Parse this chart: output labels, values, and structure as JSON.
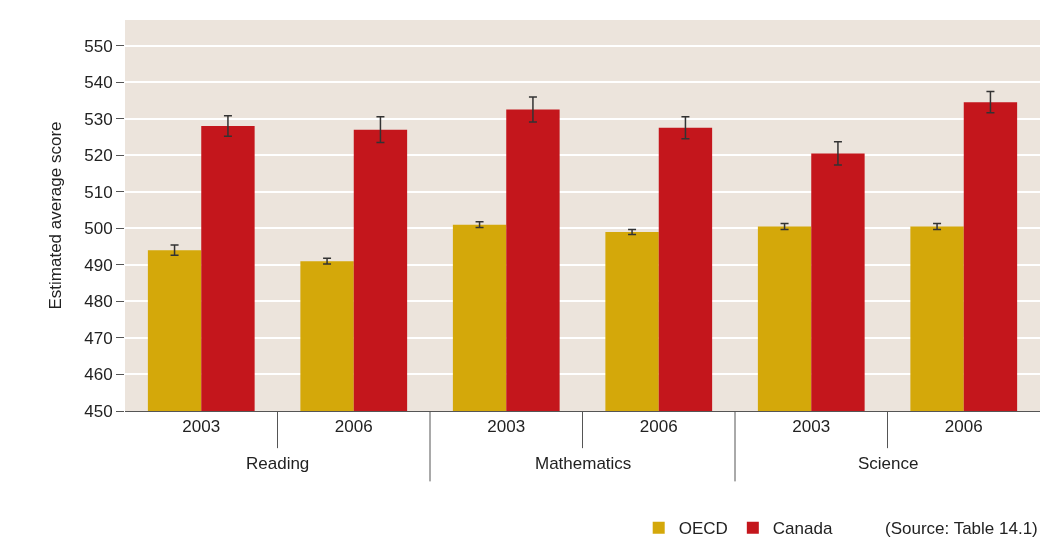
{
  "chart_data": {
    "type": "bar",
    "ylabel": "Estimated average score",
    "categories": [
      "2003",
      "2006",
      "2003",
      "2006",
      "2003",
      "2006"
    ],
    "series": [
      {
        "name": "OECD",
        "color": "#d4a80a",
        "values": [
          494,
          491,
          501,
          499,
          500.5,
          500.5
        ],
        "errors": [
          1.4,
          0.8,
          0.8,
          0.7,
          0.8,
          0.8
        ]
      },
      {
        "name": "Canada",
        "color": "#c4161c",
        "values": [
          528,
          527,
          532.5,
          527.5,
          520.5,
          534.5
        ],
        "errors": [
          2.8,
          3.5,
          3.4,
          3,
          3.2,
          2.9
        ]
      }
    ],
    "ylim": [
      450,
      557
    ],
    "yticks": [
      450,
      460,
      470,
      480,
      490,
      500,
      510,
      520,
      530,
      540,
      550
    ],
    "grid": "y",
    "legend": "bottom right",
    "annotations": [
      "Reading",
      "Mathematics",
      "Science",
      "(Source: Table 14.1)"
    ]
  }
}
